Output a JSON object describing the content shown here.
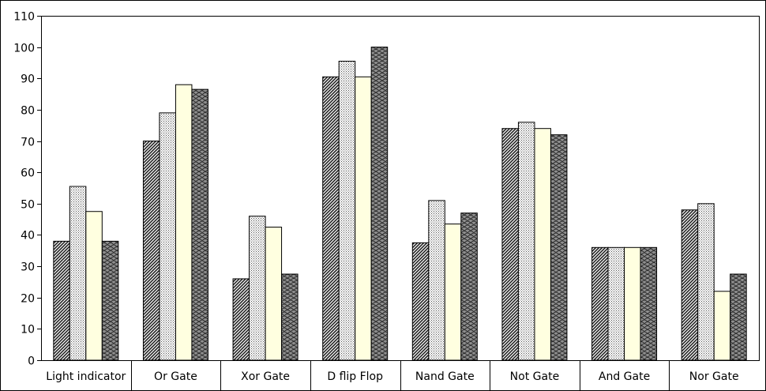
{
  "chart_data": {
    "type": "bar",
    "title": "",
    "xlabel": "",
    "ylabel": "",
    "ylim": [
      0,
      110
    ],
    "yticks": [
      0,
      10,
      20,
      30,
      40,
      50,
      60,
      70,
      80,
      90,
      100,
      110
    ],
    "grid": false,
    "legend": "none",
    "categories": [
      "Light indicator",
      "Or Gate",
      "Xor Gate",
      "D flip Flop",
      "Nand Gate",
      "Not Gate",
      "And Gate",
      "Nor Gate"
    ],
    "series": [
      {
        "values": [
          38,
          70,
          26,
          90.5,
          37.5,
          74,
          36,
          48
        ],
        "pattern": "diagonal-hatch",
        "color": "#4a4a4a"
      },
      {
        "values": [
          55.5,
          79,
          46,
          95.5,
          51,
          76,
          36,
          50
        ],
        "pattern": "dots",
        "color": "#ffffff"
      },
      {
        "values": [
          47.5,
          88,
          42.5,
          90.5,
          43.5,
          74,
          36,
          22
        ],
        "pattern": "solid",
        "color": "#ffffe0"
      },
      {
        "values": [
          38,
          86.5,
          27.5,
          100,
          47,
          72,
          36,
          27.5
        ],
        "pattern": "scales",
        "color": "#808080"
      }
    ]
  }
}
